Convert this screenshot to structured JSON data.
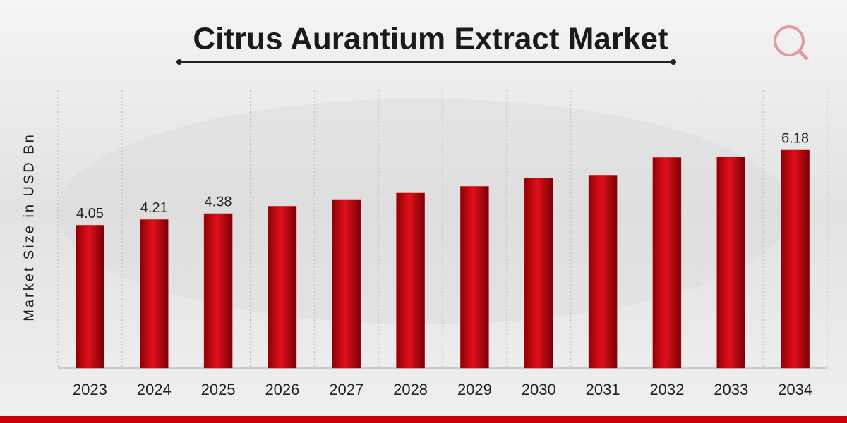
{
  "chart_data": {
    "type": "bar",
    "title": "Citrus Aurantium Extract Market",
    "y_label": "Market Size in USD Bn",
    "categories": [
      "2023",
      "2024",
      "2025",
      "2026",
      "2027",
      "2028",
      "2029",
      "2030",
      "2031",
      "2032",
      "2033",
      "2034"
    ],
    "values": [
      4.05,
      4.21,
      4.38,
      4.59,
      4.78,
      4.96,
      5.15,
      5.38,
      5.47,
      5.97,
      5.99,
      6.18
    ],
    "value_labels": [
      "4.05",
      "4.21",
      "4.38",
      null,
      null,
      null,
      null,
      null,
      null,
      null,
      null,
      "6.18"
    ],
    "color": "#c8000a",
    "ylim": [
      0,
      7
    ]
  }
}
